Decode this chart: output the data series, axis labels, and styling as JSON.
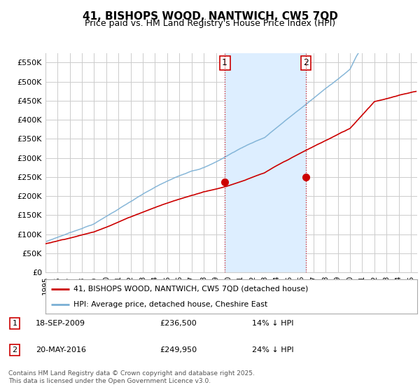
{
  "title": "41, BISHOPS WOOD, NANTWICH, CW5 7QD",
  "subtitle": "Price paid vs. HM Land Registry's House Price Index (HPI)",
  "ylabel_ticks": [
    "£0",
    "£50K",
    "£100K",
    "£150K",
    "£200K",
    "£250K",
    "£300K",
    "£350K",
    "£400K",
    "£450K",
    "£500K",
    "£550K"
  ],
  "ytick_vals": [
    0,
    50000,
    100000,
    150000,
    200000,
    250000,
    300000,
    350000,
    400000,
    450000,
    500000,
    550000
  ],
  "ylim": [
    0,
    575000
  ],
  "xlim_start": 1995.0,
  "xlim_end": 2025.5,
  "xtick_years": [
    1995,
    1996,
    1997,
    1998,
    1999,
    2000,
    2001,
    2002,
    2003,
    2004,
    2005,
    2006,
    2007,
    2008,
    2009,
    2010,
    2011,
    2012,
    2013,
    2014,
    2015,
    2016,
    2017,
    2018,
    2019,
    2020,
    2021,
    2022,
    2023,
    2024,
    2025
  ],
  "marker1_x": 2009.72,
  "marker1_y": 236500,
  "marker1_label": "1",
  "marker2_x": 2016.38,
  "marker2_y": 249950,
  "marker2_label": "2",
  "legend_line1": "41, BISHOPS WOOD, NANTWICH, CW5 7QD (detached house)",
  "legend_line2": "HPI: Average price, detached house, Cheshire East",
  "annotation1_date": "18-SEP-2009",
  "annotation1_price": "£236,500",
  "annotation1_hpi": "14% ↓ HPI",
  "annotation2_date": "20-MAY-2016",
  "annotation2_price": "£249,950",
  "annotation2_hpi": "24% ↓ HPI",
  "footer": "Contains HM Land Registry data © Crown copyright and database right 2025.\nThis data is licensed under the Open Government Licence v3.0.",
  "line_color_price": "#cc0000",
  "line_color_hpi": "#7aafd4",
  "shade_color": "#ddeeff",
  "grid_color": "#cccccc",
  "bg_color": "#ffffff",
  "vline_color": "#cc0000"
}
